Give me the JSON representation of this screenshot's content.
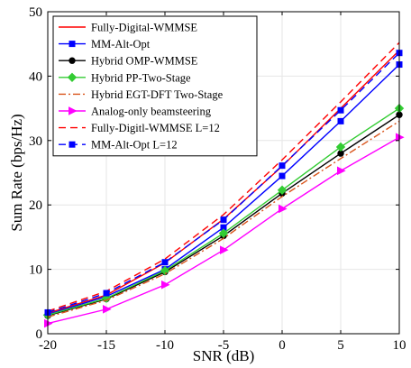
{
  "chart_data": {
    "type": "line",
    "xlabel": "SNR (dB)",
    "ylabel": "Sum Rate (bps/Hz)",
    "xlim": [
      -20,
      10
    ],
    "ylim": [
      0,
      50
    ],
    "x": [
      -20,
      -15,
      -10,
      -5,
      0,
      5,
      10
    ],
    "xticks": [
      "-20",
      "-15",
      "-10",
      "-5",
      "0",
      "5",
      "10"
    ],
    "yticks": [
      "0",
      "10",
      "20",
      "30",
      "40",
      "50"
    ],
    "grid": true,
    "legend_position": "top-left",
    "series": [
      {
        "name": "Fully-Digital-WMMSE",
        "values": [
          3.2,
          6.0,
          11.0,
          17.8,
          26.0,
          35.0,
          44.0
        ],
        "color": "#ff0000",
        "dash": "solid",
        "marker": "none"
      },
      {
        "name": "MM-Alt-Opt",
        "values": [
          3.0,
          5.8,
          10.0,
          16.5,
          24.5,
          33.0,
          41.8
        ],
        "color": "#0000ff",
        "dash": "solid",
        "marker": "square"
      },
      {
        "name": "Hybrid OMP-WMMSE",
        "values": [
          2.8,
          5.4,
          9.6,
          15.2,
          21.8,
          28.0,
          34.0
        ],
        "color": "#000000",
        "dash": "solid",
        "marker": "circle"
      },
      {
        "name": "Hybrid PP-Two-Stage",
        "values": [
          2.9,
          5.5,
          9.8,
          15.6,
          22.3,
          29.0,
          35.0
        ],
        "color": "#33cc33",
        "dash": "solid",
        "marker": "diamond"
      },
      {
        "name": "Hybrid EGT-DFT Two-Stage",
        "values": [
          2.6,
          5.2,
          9.3,
          14.8,
          21.3,
          27.2,
          33.0
        ],
        "color": "#d95319",
        "dash": "dashdot",
        "marker": "none"
      },
      {
        "name": "Analog-only beamsteering",
        "values": [
          1.6,
          3.8,
          7.6,
          13.0,
          19.4,
          25.3,
          30.5
        ],
        "color": "#ff00ff",
        "dash": "solid",
        "marker": "triangle-right"
      },
      {
        "name": "Fully-Digitl-WMMSE L=12",
        "values": [
          3.5,
          6.6,
          11.6,
          18.5,
          27.0,
          36.0,
          45.2
        ],
        "color": "#ff0000",
        "dash": "dashed",
        "marker": "none"
      },
      {
        "name": "MM-Alt-Opt L=12",
        "values": [
          3.3,
          6.3,
          11.1,
          17.7,
          26.1,
          34.7,
          43.6
        ],
        "color": "#0000ff",
        "dash": "dashed",
        "marker": "square"
      }
    ]
  }
}
